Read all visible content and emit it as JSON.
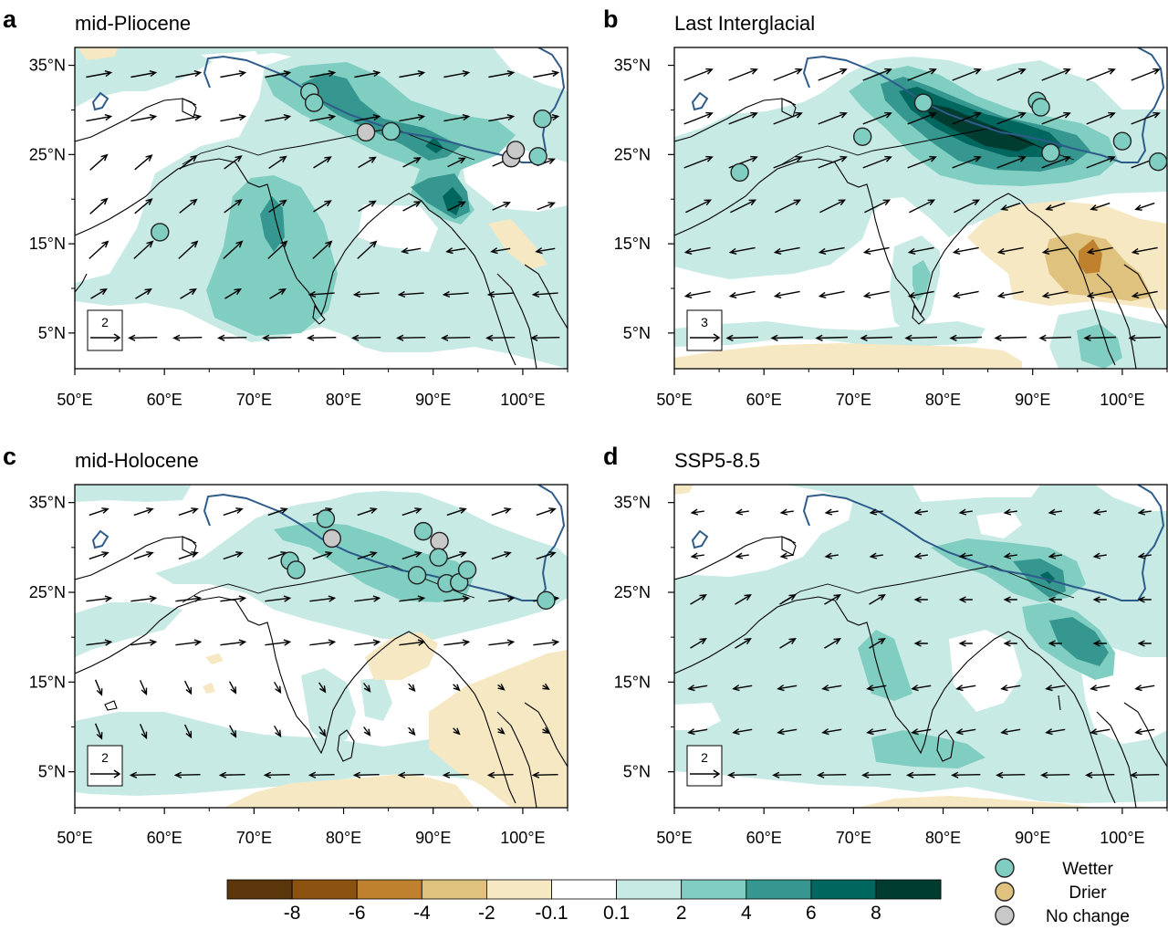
{
  "figure": {
    "colors": {
      "dry8": "#5a360a",
      "dry6": "#8c520f",
      "dry4": "#bf812d",
      "dry2": "#dfc27d",
      "dry01": "#f6e8c3",
      "neutral": "#ffffff",
      "wet01": "#c7eae5",
      "wet2": "#80cdc1",
      "wet4": "#35978f",
      "wet6": "#01665e",
      "wet8": "#003c30",
      "tibet": "#2e5c8a",
      "coast": "#000000",
      "nochange": "#c8c8c8"
    }
  },
  "panels": [
    {
      "letter": "a",
      "title": "mid-Pliocene",
      "ref_arrow": "2",
      "x_ticks": [
        "50°E",
        "60°E",
        "70°E",
        "80°E",
        "90°E",
        "100°E"
      ],
      "y_ticks": [
        "35°N",
        "25°N",
        "15°N",
        "5°N"
      ],
      "sites": [
        {
          "lon": 76.2,
          "lat": 32.0,
          "type": "wetter"
        },
        {
          "lon": 76.7,
          "lat": 30.8,
          "type": "wetter"
        },
        {
          "lon": 82.5,
          "lat": 27.5,
          "type": "nochange"
        },
        {
          "lon": 85.3,
          "lat": 27.6,
          "type": "wetter"
        },
        {
          "lon": 59.5,
          "lat": 16.3,
          "type": "wetter"
        },
        {
          "lon": 98.7,
          "lat": 24.6,
          "type": "nochange"
        },
        {
          "lon": 99.2,
          "lat": 25.5,
          "type": "nochange"
        },
        {
          "lon": 101.7,
          "lat": 24.8,
          "type": "wetter"
        },
        {
          "lon": 102.2,
          "lat": 29.0,
          "type": "wetter"
        }
      ]
    },
    {
      "letter": "b",
      "title": "Last Interglacial",
      "ref_arrow": "3",
      "x_ticks": [
        "50°E",
        "60°E",
        "70°E",
        "80°E",
        "90°E",
        "100°E"
      ],
      "y_ticks": [
        "35°N",
        "25°N",
        "15°N",
        "5°N"
      ],
      "sites": [
        {
          "lon": 77.8,
          "lat": 30.8,
          "type": "wetter"
        },
        {
          "lon": 90.5,
          "lat": 31.0,
          "type": "wetter"
        },
        {
          "lon": 90.9,
          "lat": 30.3,
          "type": "wetter"
        },
        {
          "lon": 71.0,
          "lat": 27.0,
          "type": "wetter"
        },
        {
          "lon": 57.3,
          "lat": 23.0,
          "type": "wetter"
        },
        {
          "lon": 92.0,
          "lat": 25.2,
          "type": "wetter"
        },
        {
          "lon": 100.0,
          "lat": 26.5,
          "type": "wetter"
        },
        {
          "lon": 104.0,
          "lat": 24.2,
          "type": "wetter"
        }
      ]
    },
    {
      "letter": "c",
      "title": "mid-Holocene",
      "ref_arrow": "2",
      "x_ticks": [
        "50°E",
        "60°E",
        "70°E",
        "80°E",
        "90°E",
        "100°E"
      ],
      "y_ticks": [
        "35°N",
        "25°N",
        "15°N",
        "5°N"
      ],
      "sites": [
        {
          "lon": 78.0,
          "lat": 33.2,
          "type": "wetter"
        },
        {
          "lon": 78.7,
          "lat": 31.0,
          "type": "nochange"
        },
        {
          "lon": 74.0,
          "lat": 28.5,
          "type": "wetter"
        },
        {
          "lon": 74.7,
          "lat": 27.5,
          "type": "wetter"
        },
        {
          "lon": 88.9,
          "lat": 31.8,
          "type": "wetter"
        },
        {
          "lon": 90.7,
          "lat": 30.7,
          "type": "nochange"
        },
        {
          "lon": 90.6,
          "lat": 28.9,
          "type": "wetter"
        },
        {
          "lon": 88.2,
          "lat": 26.9,
          "type": "wetter"
        },
        {
          "lon": 91.5,
          "lat": 26.0,
          "type": "wetter"
        },
        {
          "lon": 92.9,
          "lat": 26.1,
          "type": "wetter"
        },
        {
          "lon": 93.8,
          "lat": 27.5,
          "type": "wetter"
        },
        {
          "lon": 102.6,
          "lat": 24.1,
          "type": "wetter"
        }
      ]
    },
    {
      "letter": "d",
      "title": "SSP5-8.5",
      "ref_arrow": "2",
      "x_ticks": [
        "50°E",
        "60°E",
        "70°E",
        "80°E",
        "90°E",
        "100°E"
      ],
      "y_ticks": [
        "35°N",
        "25°N",
        "15°N",
        "5°N"
      ],
      "sites": []
    }
  ],
  "colorbar": {
    "labels": [
      "-8",
      "-6",
      "-4",
      "-2",
      "-0.1",
      "0.1",
      "2",
      "4",
      "6",
      "8"
    ]
  },
  "legend": {
    "items": [
      {
        "label": "Wetter",
        "type": "wetter"
      },
      {
        "label": "Drier",
        "type": "drier"
      },
      {
        "label": "No change",
        "type": "nochange"
      }
    ]
  }
}
